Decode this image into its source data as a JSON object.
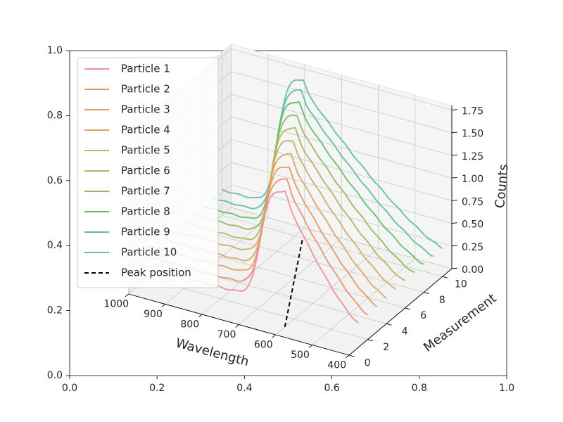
{
  "chart_data": {
    "type": "line",
    "projection": "3d",
    "xlabel": "Wavelength",
    "ylabel": "Measurement",
    "zlabel": "Counts",
    "x_ticks": [
      "400",
      "500",
      "600",
      "700",
      "800",
      "900",
      "1000"
    ],
    "y_ticks": [
      "0",
      "2",
      "4",
      "6",
      "8",
      "10"
    ],
    "z_ticks": [
      "0.00",
      "0.25",
      "0.50",
      "0.75",
      "1.00",
      "1.25",
      "1.50",
      "1.75"
    ],
    "xlim": [
      400,
      1000
    ],
    "ylim": [
      0,
      11
    ],
    "zlim": [
      0,
      1.8
    ],
    "frame_x_ticks": [
      "0.0",
      "0.2",
      "0.4",
      "0.6",
      "0.8",
      "1.0"
    ],
    "frame_y_ticks": [
      "0.0",
      "0.2",
      "0.4",
      "0.6",
      "0.8",
      "1.0"
    ],
    "legend_position": "upper-left",
    "grid": true,
    "series": [
      {
        "name": "Particle 1",
        "measurement": 1,
        "peak_wavelength": 600,
        "peak_counts": 1.5,
        "color": "#f28e9b"
      },
      {
        "name": "Particle 2",
        "measurement": 2,
        "peak_wavelength": 620,
        "peak_counts": 1.52,
        "color": "#ee8f74"
      },
      {
        "name": "Particle 3",
        "measurement": 3,
        "peak_wavelength": 640,
        "peak_counts": 1.55,
        "color": "#e59a58"
      },
      {
        "name": "Particle 4",
        "measurement": 4,
        "peak_wavelength": 660,
        "peak_counts": 1.58,
        "color": "#d8a75a"
      },
      {
        "name": "Particle 5",
        "measurement": 5,
        "peak_wavelength": 680,
        "peak_counts": 1.62,
        "color": "#c7b060"
      },
      {
        "name": "Particle 6",
        "measurement": 6,
        "peak_wavelength": 700,
        "peak_counts": 1.65,
        "color": "#b1b562"
      },
      {
        "name": "Particle 7",
        "measurement": 7,
        "peak_wavelength": 720,
        "peak_counts": 1.68,
        "color": "#93b85f"
      },
      {
        "name": "Particle 8",
        "measurement": 8,
        "peak_wavelength": 740,
        "peak_counts": 1.72,
        "color": "#5fbf66"
      },
      {
        "name": "Particle 9",
        "measurement": 9,
        "peak_wavelength": 760,
        "peak_counts": 1.74,
        "color": "#5dbf9b"
      },
      {
        "name": "Particle 10",
        "measurement": 10,
        "peak_wavelength": 780,
        "peak_counts": 1.75,
        "color": "#64bca9"
      }
    ],
    "peak_line": {
      "name": "Peak position",
      "style": "dashed",
      "color": "#000000",
      "from": {
        "wavelength": 600,
        "measurement": 1,
        "counts": 0
      },
      "to": {
        "wavelength": 780,
        "measurement": 10,
        "counts": 0
      }
    }
  }
}
